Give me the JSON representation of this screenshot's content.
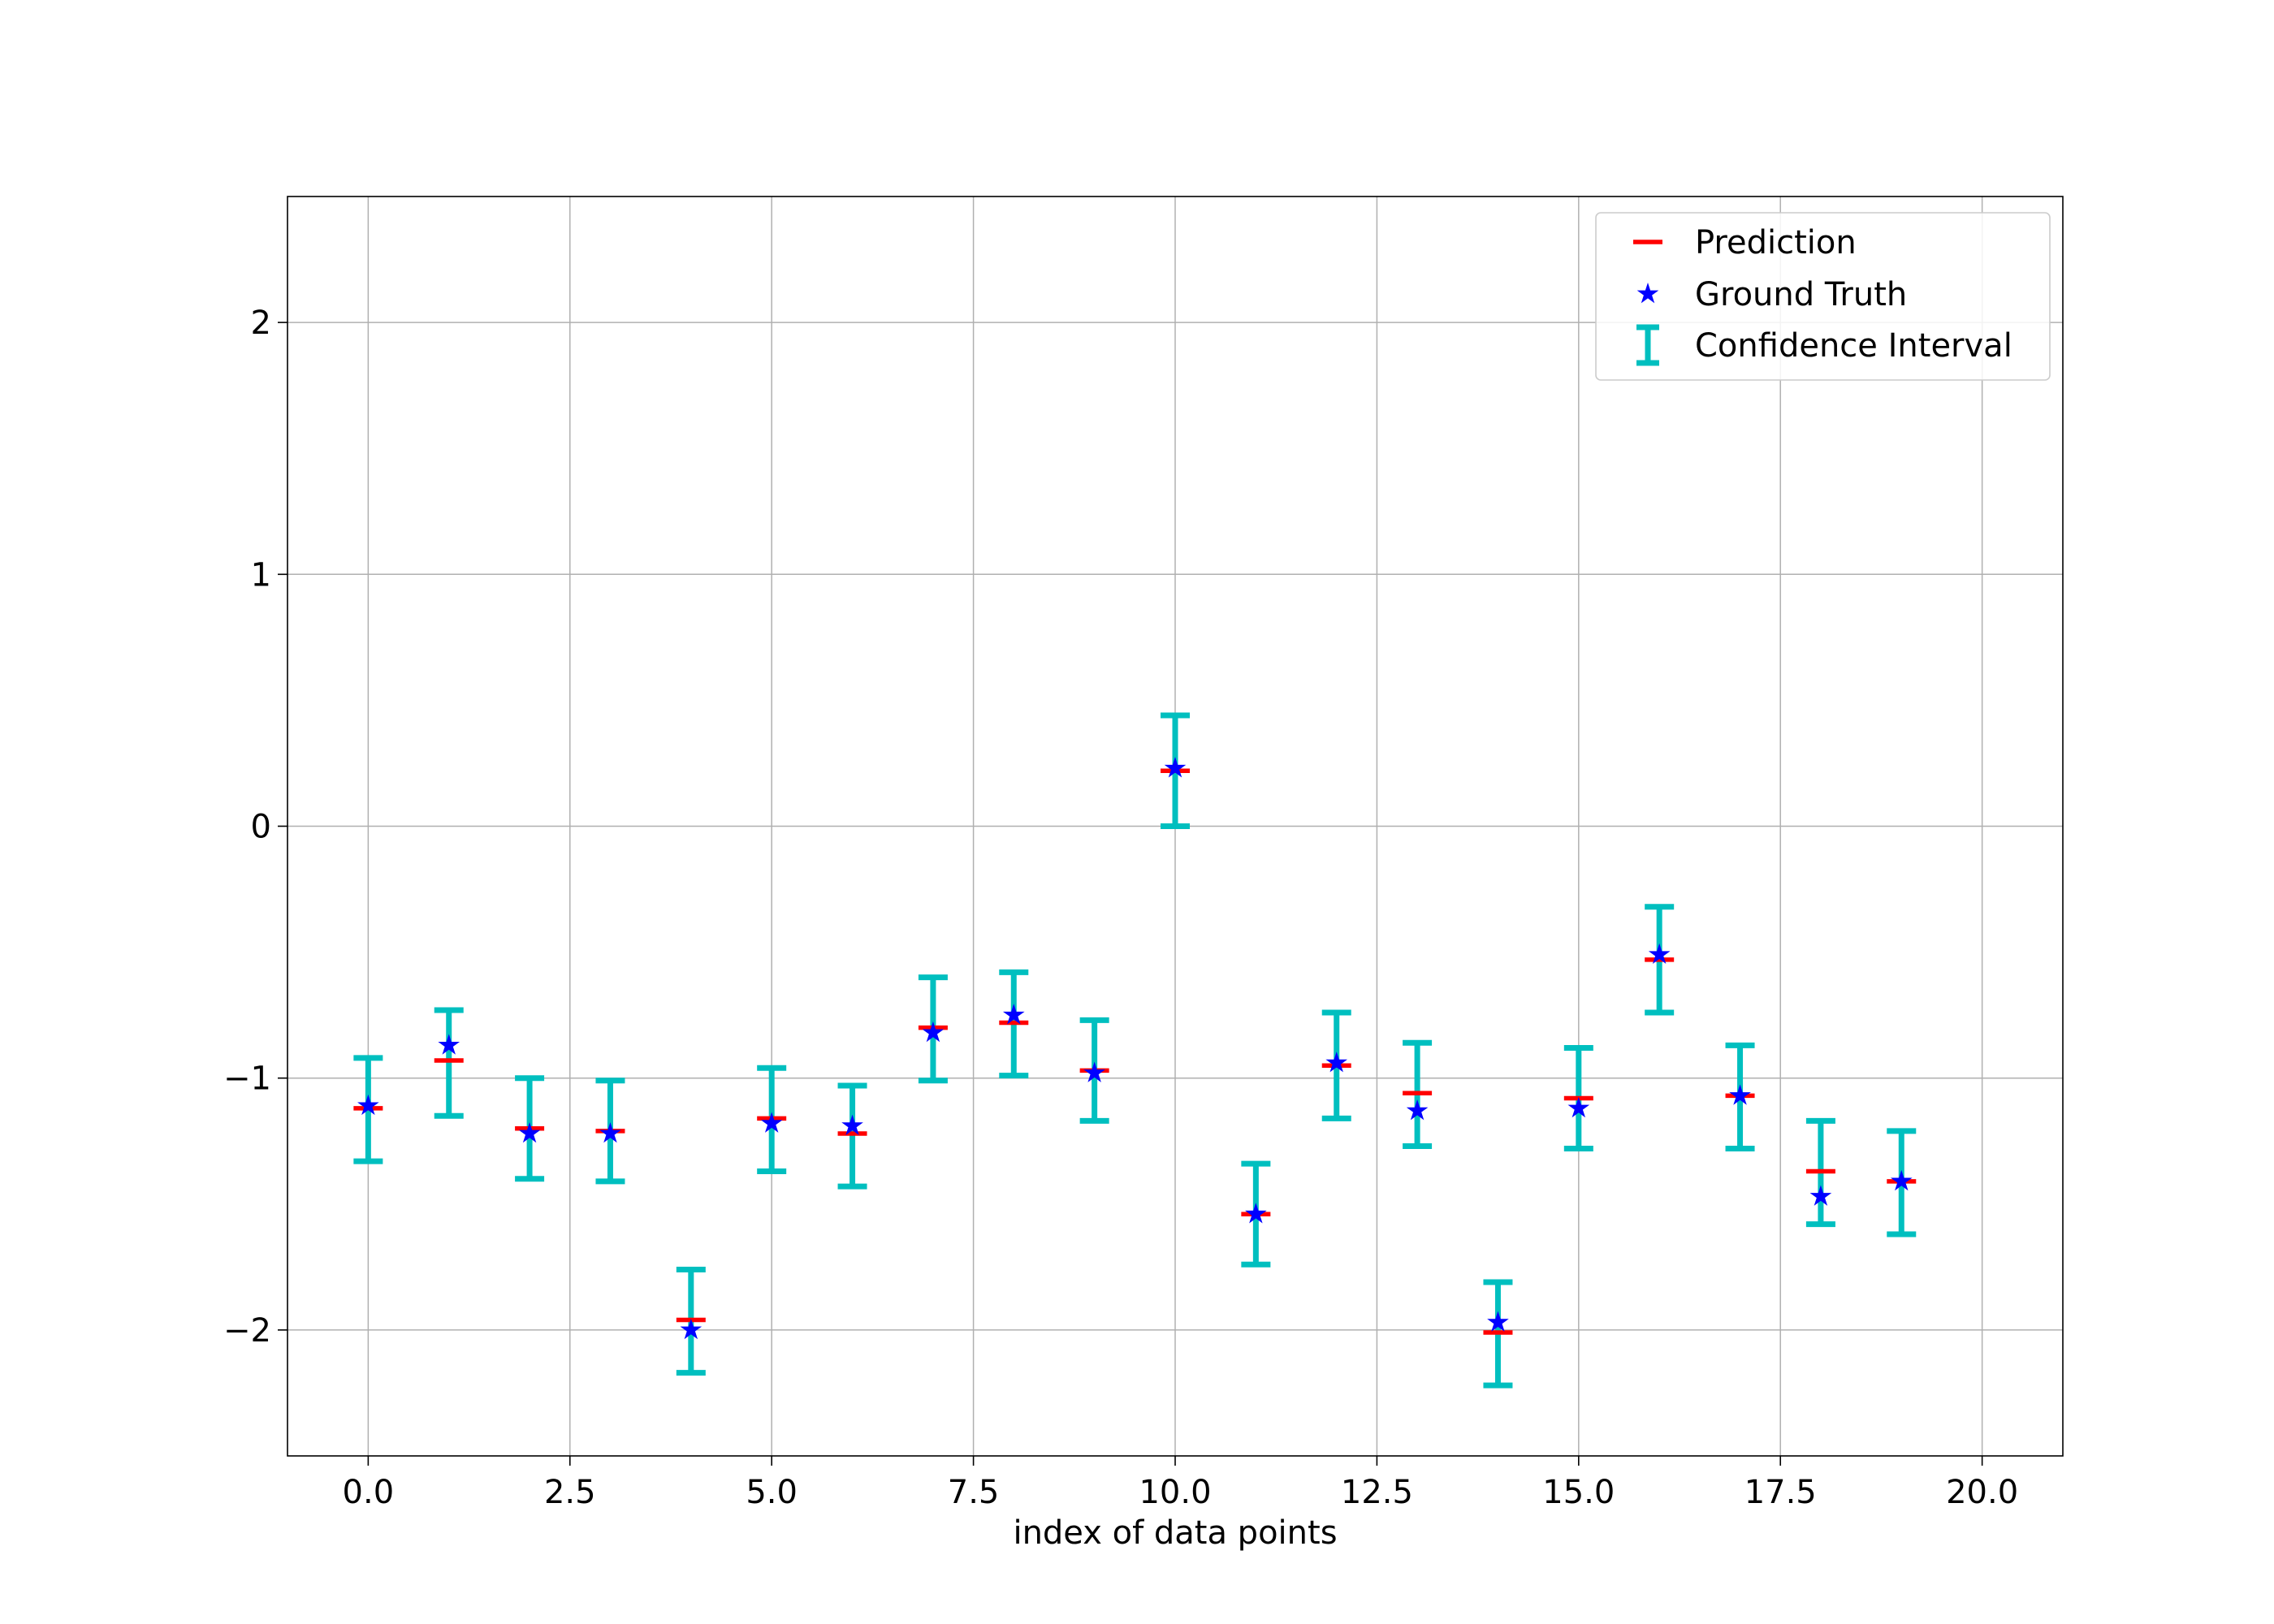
{
  "chart_data": {
    "type": "scatter",
    "title": "",
    "xlabel": "index of data points",
    "ylabel": "",
    "xlim": [
      -1.0,
      21.0
    ],
    "ylim": [
      -2.5,
      2.5
    ],
    "xticks": [
      0.0,
      2.5,
      5.0,
      7.5,
      10.0,
      12.5,
      15.0,
      17.5,
      20.0
    ],
    "xtick_labels": [
      "0.0",
      "2.5",
      "5.0",
      "7.5",
      "10.0",
      "12.5",
      "15.0",
      "17.5",
      "20.0"
    ],
    "yticks": [
      -2,
      -1,
      0,
      1,
      2
    ],
    "ytick_labels": [
      "−2",
      "−1",
      "0",
      "1",
      "2"
    ],
    "grid": true,
    "legend_position": "top-right",
    "x": [
      0,
      1,
      2,
      3,
      4,
      5,
      6,
      7,
      8,
      9,
      10,
      11,
      12,
      13,
      14,
      15,
      16,
      17,
      18,
      19
    ],
    "series": [
      {
        "name": "Prediction",
        "marker": "horizontal-line",
        "color": "#ff0000",
        "values": [
          -1.12,
          -0.93,
          -1.2,
          -1.21,
          -1.96,
          -1.16,
          -1.22,
          -0.8,
          -0.78,
          -0.97,
          0.22,
          -1.54,
          -0.95,
          -1.06,
          -2.01,
          -1.08,
          -0.53,
          -1.07,
          -1.37,
          -1.41
        ]
      },
      {
        "name": "Ground Truth",
        "marker": "star",
        "color": "#0000ff",
        "values": [
          -1.11,
          -0.87,
          -1.22,
          -1.22,
          -2.0,
          -1.18,
          -1.19,
          -0.82,
          -0.75,
          -0.98,
          0.23,
          -1.54,
          -0.94,
          -1.13,
          -1.97,
          -1.12,
          -0.51,
          -1.07,
          -1.47,
          -1.41
        ]
      },
      {
        "name": "Confidence Interval",
        "marker": "errorbar",
        "color": "#00bfbf",
        "lower": [
          -1.33,
          -1.15,
          -1.4,
          -1.41,
          -2.17,
          -1.37,
          -1.43,
          -1.01,
          -0.99,
          -1.17,
          0.0,
          -1.74,
          -1.16,
          -1.27,
          -2.22,
          -1.28,
          -0.74,
          -1.28,
          -1.58,
          -1.62
        ],
        "upper": [
          -0.92,
          -0.73,
          -1.0,
          -1.01,
          -1.76,
          -0.96,
          -1.03,
          -0.6,
          -0.58,
          -0.77,
          0.44,
          -1.34,
          -0.74,
          -0.86,
          -1.81,
          -0.88,
          -0.32,
          -0.87,
          -1.17,
          -1.21
        ]
      }
    ]
  }
}
